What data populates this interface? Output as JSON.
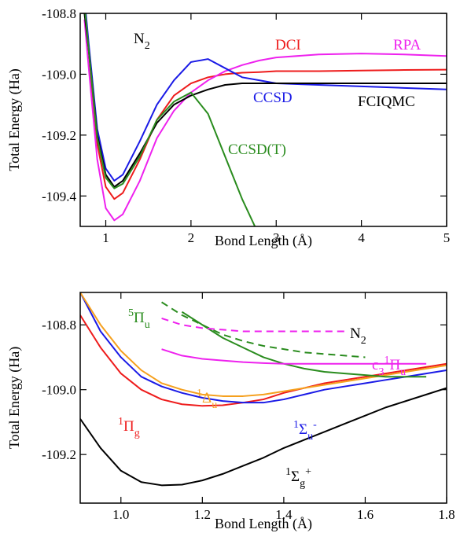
{
  "chart_data": [
    {
      "type": "line",
      "xlabel": "Bond Length (Å)",
      "ylabel": "Total Energy (Ha)",
      "xlim": [
        0.7,
        5
      ],
      "ylim": [
        -109.5,
        -108.8
      ],
      "xticks": [
        1,
        2,
        3,
        4,
        5
      ],
      "yticks": [
        -109.4,
        -109.2,
        {
          "value": -109,
          "label": "-109.0"
        },
        -108.8
      ],
      "x": [
        0.75,
        0.8,
        0.9,
        1.0,
        1.1,
        1.2,
        1.4,
        1.6,
        1.8,
        2.0,
        2.2,
        2.4,
        2.6,
        2.8,
        3,
        3.5,
        4,
        4.5,
        5
      ],
      "annotations": [
        {
          "color": "#000000",
          "parts": [
            {
              "text": "N"
            },
            {
              "text": "2",
              "shift": "sub"
            }
          ]
        }
      ],
      "series": [
        {
          "name": "DCI",
          "color": "#ee1c1c",
          "values": [
            -108.78,
            -108.93,
            -109.23,
            -109.37,
            -109.41,
            -109.39,
            -109.28,
            -109.15,
            -109.07,
            -109.03,
            -109.01,
            -109.0,
            -108.995,
            -108.993,
            -108.99,
            -108.99,
            -108.988,
            -108.986,
            -108.985
          ]
        },
        {
          "name": "RPA",
          "color": "#ee22ee",
          "values": [
            -108.82,
            -108.98,
            -109.28,
            -109.44,
            -109.48,
            -109.46,
            -109.35,
            -109.21,
            -109.12,
            -109.06,
            -109.02,
            -108.99,
            -108.97,
            -108.955,
            -108.945,
            -108.935,
            -108.932,
            -108.935,
            -108.94
          ]
        },
        {
          "name": "CCSD",
          "color": "#1a1ae6",
          "values": [
            -108.75,
            -108.9,
            -109.18,
            -109.31,
            -109.35,
            -109.33,
            -109.22,
            -109.1,
            -109.02,
            -108.96,
            -108.95,
            -108.98,
            -109.01,
            -109.02,
            -109.03,
            -109.035,
            -109.04,
            -109.045,
            -109.05
          ]
        },
        {
          "name": "FCIQMC",
          "color": "#000000",
          "values": [
            -108.8,
            -108.92,
            -109.2,
            -109.33,
            -109.37,
            -109.35,
            -109.26,
            -109.16,
            -109.1,
            -109.07,
            -109.05,
            -109.035,
            -109.03,
            -109.03,
            -109.03,
            -109.03,
            -109.03,
            -109.03,
            -109.03
          ]
        },
        {
          "name": "CCSD(T)",
          "color": "#2a8c1e",
          "values": [
            -108.77,
            -108.92,
            -109.21,
            -109.34,
            -109.375,
            -109.36,
            -109.27,
            -109.15,
            -109.09,
            -109.06,
            -109.13,
            -109.27,
            -109.41,
            -109.53,
            null,
            null,
            null,
            null,
            null
          ]
        }
      ]
    },
    {
      "type": "line",
      "xlabel": "Bond Length (Å)",
      "ylabel": "Total Energy (Ha)",
      "xlim": [
        0.9,
        1.8
      ],
      "ylim": [
        -109.35,
        -108.7
      ],
      "xticks": [
        {
          "value": 1,
          "label": "1.0"
        },
        1.2,
        1.4,
        1.6,
        1.8
      ],
      "yticks": [
        -109.2,
        {
          "value": -109,
          "label": "-109.0"
        },
        -108.8
      ],
      "x": [
        0.9,
        0.95,
        1.0,
        1.05,
        1.1,
        1.15,
        1.2,
        1.25,
        1.3,
        1.35,
        1.4,
        1.45,
        1.5,
        1.55,
        1.6,
        1.65,
        1.7,
        1.75,
        1.8
      ],
      "annotations": [
        {
          "color": "#000000",
          "parts": [
            {
              "text": "N"
            },
            {
              "text": "2",
              "shift": "sub"
            }
          ]
        },
        {
          "color": "#2a8c1e",
          "parts": [
            {
              "text": "5",
              "shift": "sup"
            },
            {
              "text": "Π"
            },
            {
              "text": "u",
              "shift": "sub"
            }
          ]
        },
        {
          "color": "#ee22ee",
          "parts": [
            {
              "text": "c"
            },
            {
              "text": "3",
              "shift": "sub"
            },
            {
              "text": "1",
              "shift": "sup"
            },
            {
              "text": "Π"
            },
            {
              "text": "u",
              "shift": "sub"
            }
          ]
        },
        {
          "color": "#f5a01e",
          "parts": [
            {
              "text": "1",
              "shift": "sup"
            },
            {
              "text": "Δ"
            },
            {
              "text": "u",
              "shift": "sub"
            }
          ]
        },
        {
          "color": "#ee1c1c",
          "parts": [
            {
              "text": "1",
              "shift": "sup"
            },
            {
              "text": "Π"
            },
            {
              "text": "g",
              "shift": "sub"
            }
          ]
        },
        {
          "color": "#1a1ae6",
          "parts": [
            {
              "text": "1",
              "shift": "sup"
            },
            {
              "text": "Σ"
            },
            {
              "text": "u",
              "shift": "sub"
            },
            {
              "text": "-",
              "shift": "sup"
            }
          ]
        },
        {
          "color": "#000000",
          "parts": [
            {
              "text": "1",
              "shift": "sup"
            },
            {
              "text": "Σ"
            },
            {
              "text": "g",
              "shift": "sub"
            },
            {
              "text": "+",
              "shift": "sup"
            }
          ]
        }
      ],
      "series": [
        {
          "color": "#000000",
          "dash": false,
          "values": [
            -109.09,
            -109.18,
            -109.25,
            -109.285,
            -109.295,
            -109.293,
            -109.28,
            -109.26,
            -109.235,
            -109.21,
            -109.18,
            -109.155,
            -109.13,
            -109.105,
            -109.08,
            -109.055,
            -109.035,
            -109.015,
            -108.995
          ]
        },
        {
          "color": "#ee1c1c",
          "dash": false,
          "values": [
            -108.77,
            -108.87,
            -108.95,
            -109.0,
            -109.03,
            -109.045,
            -109.05,
            -109.048,
            -109.04,
            -109.03,
            -109.01,
            -108.995,
            -108.98,
            -108.97,
            -108.96,
            -108.95,
            -108.94,
            -108.93,
            -108.92
          ]
        },
        {
          "color": "#1a1ae6",
          "dash": false,
          "values": [
            -108.7,
            -108.82,
            -108.9,
            -108.96,
            -108.99,
            -109.01,
            -109.025,
            -109.035,
            -109.04,
            -109.04,
            -109.03,
            -109.015,
            -109.0,
            -108.99,
            -108.98,
            -108.97,
            -108.96,
            -108.95,
            -108.94
          ]
        },
        {
          "color": "#f5a01e",
          "dash": false,
          "values": [
            -108.7,
            -108.8,
            -108.88,
            -108.94,
            -108.98,
            -109.0,
            -109.015,
            -109.02,
            -109.02,
            -109.015,
            -109.005,
            -108.995,
            -108.985,
            -108.975,
            -108.965,
            -108.955,
            -108.945,
            -108.935,
            -108.925
          ]
        },
        {
          "color": "#2a8c1e",
          "dash": false,
          "values": [
            null,
            null,
            null,
            null,
            null,
            -108.76,
            -108.8,
            -108.84,
            -108.87,
            -108.9,
            -108.92,
            -108.935,
            -108.945,
            -108.95,
            -108.955,
            -108.96,
            -108.96,
            -108.96,
            null
          ]
        },
        {
          "color": "#2a8c1e",
          "dash": true,
          "values": [
            null,
            null,
            null,
            null,
            -108.73,
            -108.77,
            -108.8,
            -108.83,
            -108.85,
            -108.865,
            -108.875,
            -108.885,
            -108.89,
            -108.895,
            -108.9,
            null,
            null,
            null,
            null
          ]
        },
        {
          "color": "#ee22ee",
          "dash": false,
          "values": [
            null,
            null,
            null,
            null,
            -108.875,
            -108.895,
            -108.905,
            -108.91,
            -108.915,
            -108.918,
            -108.92,
            -108.92,
            -108.92,
            -108.92,
            -108.92,
            -108.92,
            -108.92,
            -108.92,
            null
          ]
        },
        {
          "color": "#ee22ee",
          "dash": true,
          "values": [
            null,
            null,
            null,
            null,
            -108.78,
            -108.8,
            -108.81,
            -108.815,
            -108.82,
            -108.82,
            -108.82,
            -108.82,
            -108.82,
            -108.82,
            null,
            null,
            null,
            null,
            null
          ]
        }
      ]
    }
  ]
}
